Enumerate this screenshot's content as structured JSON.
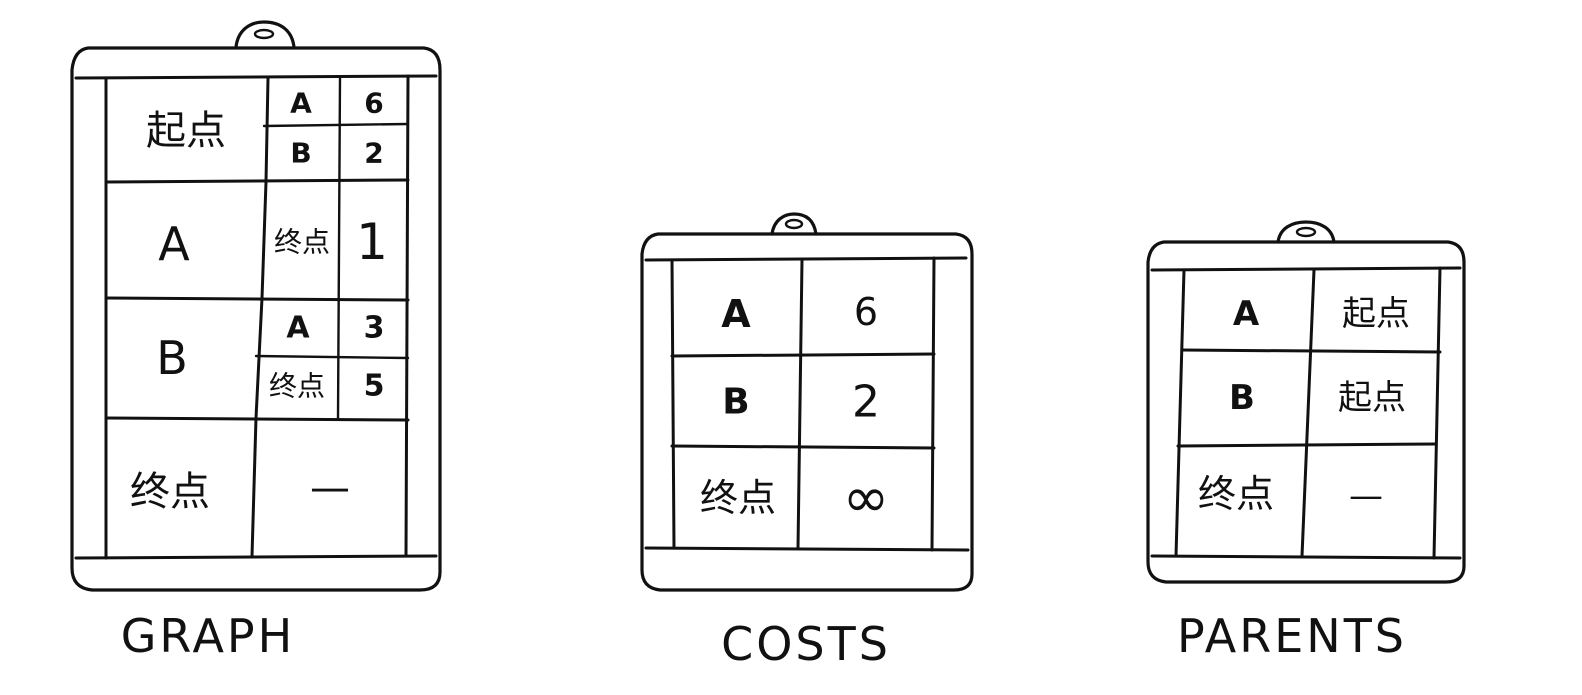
{
  "graph": {
    "caption": "GRAPH",
    "rows": [
      {
        "node": "起点",
        "edges": [
          {
            "to": "A",
            "weight": "6"
          },
          {
            "to": "B",
            "weight": "2"
          }
        ]
      },
      {
        "node": "A",
        "edges": [
          {
            "to": "终点",
            "weight": "1"
          }
        ]
      },
      {
        "node": "B",
        "edges": [
          {
            "to": "A",
            "weight": "3"
          },
          {
            "to": "终点",
            "weight": "5"
          }
        ]
      },
      {
        "node": "终点",
        "empty": "—"
      }
    ]
  },
  "costs": {
    "caption": "COSTS",
    "rows": [
      {
        "node": "A",
        "value": "6"
      },
      {
        "node": "B",
        "value": "2"
      },
      {
        "node": "终点",
        "value": "∞"
      }
    ]
  },
  "parents": {
    "caption": "PARENTS",
    "rows": [
      {
        "node": "A",
        "value": "起点"
      },
      {
        "node": "B",
        "value": "起点"
      },
      {
        "node": "终点",
        "value": "—"
      }
    ]
  }
}
